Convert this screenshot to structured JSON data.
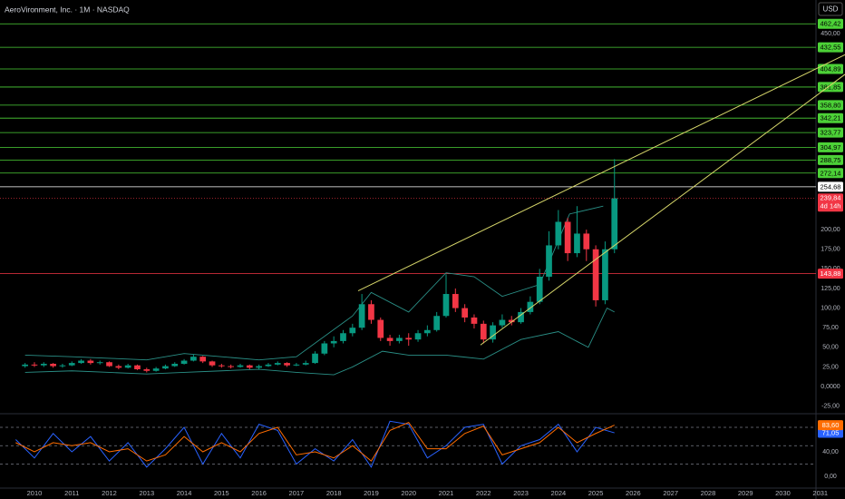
{
  "chart_data": [
    {
      "type": "candlestick",
      "title": "AeroVironment, Inc. · 1M · NASDAQ",
      "currency": "USD",
      "x": [
        2009.75,
        2010,
        2010.25,
        2010.5,
        2010.75,
        2011,
        2011.25,
        2011.5,
        2011.75,
        2012,
        2012.25,
        2012.5,
        2012.75,
        2013,
        2013.25,
        2013.5,
        2013.75,
        2014,
        2014.25,
        2014.5,
        2014.75,
        2015,
        2015.25,
        2015.5,
        2015.75,
        2016,
        2016.25,
        2016.5,
        2016.75,
        2017,
        2017.25,
        2017.5,
        2017.75,
        2018,
        2018.25,
        2018.5,
        2018.75,
        2019,
        2019.25,
        2019.5,
        2019.75,
        2020,
        2020.25,
        2020.5,
        2020.75,
        2021,
        2021.25,
        2021.5,
        2021.75,
        2022,
        2022.25,
        2022.5,
        2022.75,
        2023,
        2023.25,
        2023.5,
        2023.75,
        2024,
        2024.25,
        2024.5,
        2024.75,
        2025,
        2025.25,
        2025.5
      ],
      "open": [
        26,
        28,
        27,
        29,
        26,
        27,
        30,
        33,
        30,
        31,
        26,
        24,
        27,
        22,
        20,
        23,
        26,
        29,
        33,
        38,
        32,
        27,
        26,
        25,
        27,
        24,
        26,
        28,
        30,
        27,
        28,
        30,
        42,
        55,
        58,
        68,
        75,
        105,
        85,
        62,
        58,
        62,
        60,
        68,
        72,
        90,
        118,
        100,
        88,
        80,
        60,
        78,
        85,
        82,
        95,
        108,
        140,
        180,
        210,
        170,
        195,
        175,
        110,
        175
      ],
      "high": [
        30,
        31,
        31,
        30,
        29,
        32,
        35,
        35,
        33,
        32,
        28,
        29,
        28,
        24,
        25,
        28,
        31,
        35,
        41,
        39,
        33,
        29,
        28,
        29,
        28,
        28,
        30,
        32,
        31,
        30,
        33,
        45,
        58,
        64,
        72,
        80,
        118,
        110,
        88,
        66,
        66,
        68,
        72,
        78,
        95,
        143,
        125,
        105,
        92,
        84,
        82,
        92,
        90,
        100,
        115,
        150,
        198,
        225,
        215,
        230,
        200,
        180,
        185,
        290
      ],
      "low": [
        24,
        25,
        25,
        24,
        24,
        26,
        29,
        28,
        28,
        25,
        22,
        23,
        21,
        18,
        19,
        22,
        25,
        28,
        32,
        30,
        25,
        24,
        23,
        24,
        22,
        22,
        25,
        27,
        25,
        26,
        27,
        29,
        40,
        50,
        55,
        64,
        72,
        80,
        58,
        52,
        55,
        52,
        57,
        64,
        70,
        88,
        95,
        82,
        74,
        55,
        56,
        75,
        78,
        80,
        92,
        105,
        135,
        175,
        160,
        165,
        160,
        102,
        105,
        170
      ],
      "close": [
        28,
        27,
        29,
        26,
        27,
        30,
        33,
        30,
        31,
        26,
        24,
        27,
        22,
        20,
        23,
        26,
        29,
        33,
        38,
        32,
        27,
        26,
        25,
        27,
        24,
        26,
        28,
        30,
        27,
        28,
        30,
        42,
        55,
        58,
        68,
        75,
        105,
        85,
        62,
        58,
        62,
        60,
        68,
        72,
        90,
        118,
        100,
        88,
        80,
        60,
        78,
        85,
        82,
        95,
        108,
        140,
        180,
        210,
        170,
        195,
        175,
        110,
        175,
        240
      ],
      "up_color": "#089981",
      "down_color": "#f23645",
      "upper_band": {
        "x": [
          2009.75,
          2011,
          2012,
          2013,
          2014,
          2015,
          2016,
          2017,
          2018.5,
          2019,
          2020,
          2021,
          2021.75,
          2022.5,
          2023.5,
          2024.3,
          2025.2
        ],
        "values": [
          40,
          38,
          36,
          34,
          42,
          38,
          34,
          38,
          90,
          120,
          95,
          145,
          140,
          115,
          130,
          220,
          230
        ],
        "color": "#2a8f86"
      },
      "lower_band": {
        "x": [
          2009.75,
          2011,
          2012,
          2013,
          2014,
          2015,
          2016,
          2017,
          2018,
          2018.5,
          2019.3,
          2020,
          2021,
          2022,
          2023,
          2024,
          2024.8,
          2025.3,
          2025.5
        ],
        "values": [
          18,
          20,
          18,
          16,
          18,
          20,
          22,
          18,
          15,
          25,
          45,
          40,
          40,
          35,
          60,
          70,
          50,
          100,
          95
        ],
        "color": "#2a8f86"
      },
      "trendlines": [
        [
          [
            2018.65,
            122
          ],
          [
            2031.66,
            423
          ]
        ],
        [
          [
            2021.92,
            53
          ],
          [
            2031.66,
            398
          ]
        ]
      ],
      "trend_color": "#d6d66a",
      "levels": [
        {
          "value": 462.42,
          "label": "462,42"
        },
        {
          "value": 432.55,
          "label": "432,55"
        },
        {
          "value": 404.89,
          "label": "404,89"
        },
        {
          "value": 381.85,
          "label": "381,85"
        },
        {
          "value": 358.8,
          "label": "358,80"
        },
        {
          "value": 342.21,
          "label": "342,21"
        },
        {
          "value": 323.77,
          "label": "323,77"
        },
        {
          "value": 304.97,
          "label": "304,97"
        },
        {
          "value": 288.75,
          "label": "288,75"
        },
        {
          "value": 272.14,
          "label": "272,14"
        }
      ],
      "level_color": "#4cd137",
      "white_level": {
        "value": 254.68,
        "label": "254,68"
      },
      "red_level": {
        "value": 143.88,
        "label": "143,88"
      },
      "last_price": {
        "value": 239.84,
        "label": "239,84",
        "countdown": "4d 14h"
      },
      "xlim": [
        2009.08,
        2031.66
      ],
      "xticks": [
        2010,
        2011,
        2012,
        2013,
        2014,
        2015,
        2016,
        2017,
        2018,
        2019,
        2020,
        2021,
        2022,
        2023,
        2024,
        2025,
        2026,
        2027,
        2028,
        2029,
        2030,
        2031
      ],
      "ylim": [
        -33.5,
        492.8
      ],
      "yticks": [
        {
          "value": -25,
          "label": "-25,00"
        },
        {
          "value": 0,
          "label": "0,0000"
        },
        {
          "value": 25,
          "label": "25,00"
        },
        {
          "value": 50,
          "label": "50,00"
        },
        {
          "value": 75,
          "label": "75,00"
        },
        {
          "value": 100,
          "label": "100,00"
        },
        {
          "value": 125,
          "label": "125,00"
        },
        {
          "value": 150,
          "label": "150,00"
        },
        {
          "value": 175,
          "label": "175,00"
        },
        {
          "value": 200,
          "label": "200,00"
        },
        {
          "value": 450,
          "label": "450,00"
        }
      ]
    },
    {
      "type": "line",
      "x": [
        2009.5,
        2010,
        2010.5,
        2011,
        2011.5,
        2012,
        2012.5,
        2013,
        2013.5,
        2014,
        2014.5,
        2015,
        2015.5,
        2016,
        2016.5,
        2017,
        2017.5,
        2018,
        2018.5,
        2019,
        2019.5,
        2020,
        2020.5,
        2021,
        2021.5,
        2022,
        2022.5,
        2023,
        2023.5,
        2024,
        2024.5,
        2025,
        2025.5
      ],
      "series": [
        {
          "color": "#2962ff",
          "values": [
            60,
            30,
            70,
            40,
            65,
            25,
            55,
            15,
            45,
            80,
            20,
            70,
            30,
            85,
            75,
            20,
            45,
            25,
            60,
            15,
            90,
            85,
            30,
            50,
            80,
            85,
            20,
            50,
            60,
            85,
            40,
            80,
            71.05
          ],
          "last_label": "71,05"
        },
        {
          "color": "#ff6d00",
          "values": [
            55,
            40,
            55,
            50,
            55,
            40,
            45,
            25,
            35,
            65,
            40,
            55,
            40,
            70,
            80,
            35,
            40,
            30,
            50,
            25,
            75,
            88,
            45,
            45,
            70,
            82,
            35,
            45,
            55,
            80,
            55,
            70,
            83.6
          ],
          "last_label": "83,60"
        }
      ],
      "levels": [
        80,
        50,
        20
      ],
      "ylim": [
        -19.3,
        99.3
      ],
      "yticks": [
        {
          "value": 40,
          "label": "40,00"
        },
        {
          "value": 0,
          "label": "0,00"
        }
      ]
    }
  ]
}
